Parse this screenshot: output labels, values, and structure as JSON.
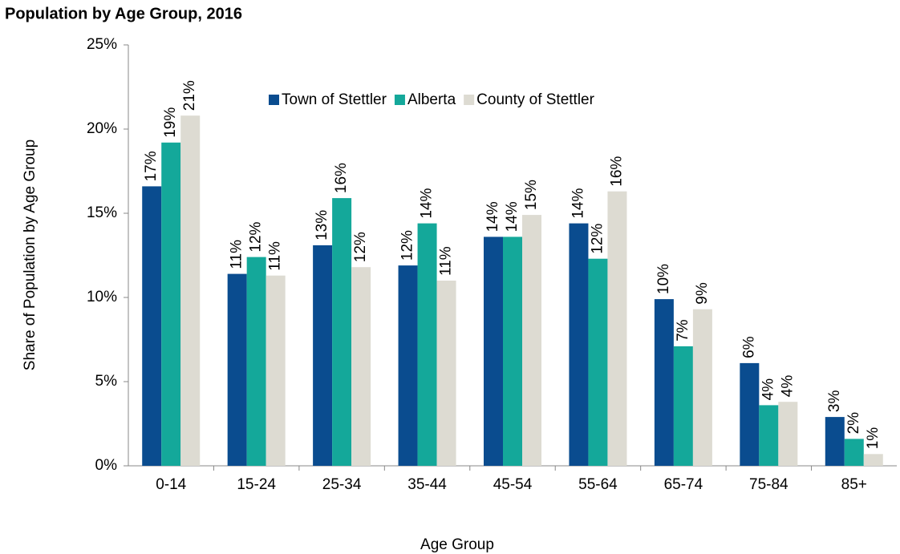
{
  "chart_data": {
    "type": "bar",
    "title": "Population by Age Group, 2016",
    "x_label": "Age Group",
    "y_label": "Share of Population by Age Group",
    "categories": [
      "0-14",
      "15-24",
      "25-34",
      "35-44",
      "45-54",
      "55-64",
      "65-74",
      "75-84",
      "85+"
    ],
    "series": [
      {
        "name": "Town of Stettler",
        "color": "#0a4c8f",
        "values": [
          16.6,
          11.4,
          13.1,
          11.9,
          13.6,
          14.4,
          9.9,
          6.1,
          2.9
        ],
        "value_labels": [
          "17%",
          "11%",
          "13%",
          "12%",
          "14%",
          "14%",
          "10%",
          "6%",
          "3%"
        ]
      },
      {
        "name": "Alberta",
        "color": "#14a89a",
        "values": [
          19.2,
          12.4,
          15.9,
          14.4,
          13.6,
          12.3,
          7.1,
          3.6,
          1.6
        ],
        "value_labels": [
          "19%",
          "12%",
          "16%",
          "14%",
          "14%",
          "12%",
          "7%",
          "4%",
          "2%"
        ]
      },
      {
        "name": "County of Stettler",
        "color": "#dddbd2",
        "values": [
          20.8,
          11.3,
          11.8,
          11.0,
          14.9,
          16.3,
          9.3,
          3.8,
          0.7
        ],
        "value_labels": [
          "21%",
          "11%",
          "12%",
          "11%",
          "15%",
          "16%",
          "9%",
          "4%",
          "1%"
        ]
      }
    ],
    "ylim": [
      0,
      25
    ],
    "yticks": [
      {
        "value": 0,
        "label": "0%"
      },
      {
        "value": 5,
        "label": "5%"
      },
      {
        "value": 10,
        "label": "10%"
      },
      {
        "value": 15,
        "label": "15%"
      },
      {
        "value": 20,
        "label": "20%"
      },
      {
        "value": 25,
        "label": "25%"
      }
    ],
    "grid": false,
    "legend": "top"
  }
}
